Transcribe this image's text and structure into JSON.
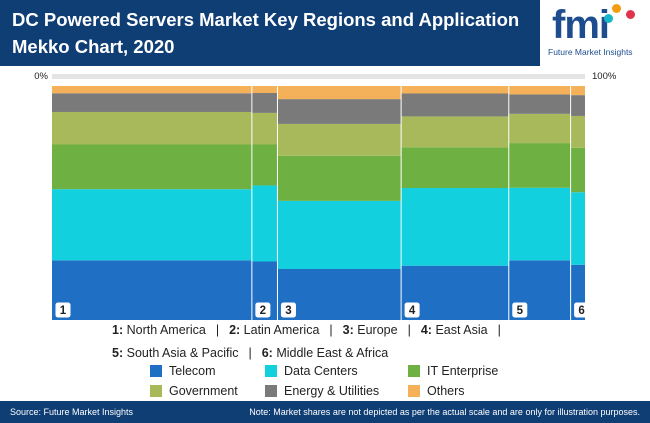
{
  "title": "DC Powered Servers Market Key Regions and Application Mekko Chart, 2020",
  "logo": {
    "mark": "fmi",
    "text": "Future Market Insights"
  },
  "chart_data": {
    "type": "mekko",
    "title": "DC Powered Servers Market Key Regions and Application Mekko Chart, 2020",
    "x_start_label": "0%",
    "x_end_label": "100%",
    "columns": [
      {
        "key": "1",
        "label": "North America",
        "width": 37.5
      },
      {
        "key": "2",
        "label": "Latin America",
        "width": 4.8
      },
      {
        "key": "3",
        "label": "Europe",
        "width": 23.2
      },
      {
        "key": "4",
        "label": "East Asia",
        "width": 20.2
      },
      {
        "key": "5",
        "label": "South Asia & Pacific",
        "width": 11.6
      },
      {
        "key": "6",
        "label": "Middle East & Africa",
        "width": 2.7
      }
    ],
    "series": [
      {
        "name": "Telecom",
        "color": "#1f6fc5",
        "values": [
          25.5,
          25.0,
          21.8,
          23.2,
          25.5,
          23.6
        ]
      },
      {
        "name": "Data Centers",
        "color": "#12d0de",
        "values": [
          30.4,
          32.5,
          29.1,
          33.2,
          31.0,
          31.0
        ]
      },
      {
        "name": "IT Enterprise",
        "color": "#6eb042",
        "values": [
          19.1,
          17.5,
          19.3,
          17.4,
          19.1,
          19.0
        ]
      },
      {
        "name": "Government",
        "color": "#a7b95a",
        "values": [
          13.9,
          13.5,
          13.6,
          13.2,
          12.5,
          13.6
        ]
      },
      {
        "name": "Energy & Utilities",
        "color": "#7a7a7a",
        "values": [
          8.0,
          8.5,
          10.6,
          9.8,
          8.3,
          8.9
        ]
      },
      {
        "name": "Others",
        "color": "#f4b15a",
        "values": [
          3.1,
          3.0,
          5.6,
          3.2,
          3.6,
          3.9
        ]
      }
    ]
  },
  "region_legend": {
    "line1": [
      {
        "num": "1:",
        "label": "North America"
      },
      {
        "num": "2:",
        "label": "Latin America"
      },
      {
        "num": "3:",
        "label": "Europe"
      },
      {
        "num": "4:",
        "label": "East Asia"
      }
    ],
    "line2": [
      {
        "num": "5:",
        "label": "South Asia & Pacific"
      },
      {
        "num": "6:",
        "label": "Middle East & Africa"
      }
    ],
    "separator": "|"
  },
  "footer": {
    "source": "Source: Future Market Insights",
    "note": "Note: Market shares are not depicted as per the actual scale and are only for illustration purposes."
  }
}
